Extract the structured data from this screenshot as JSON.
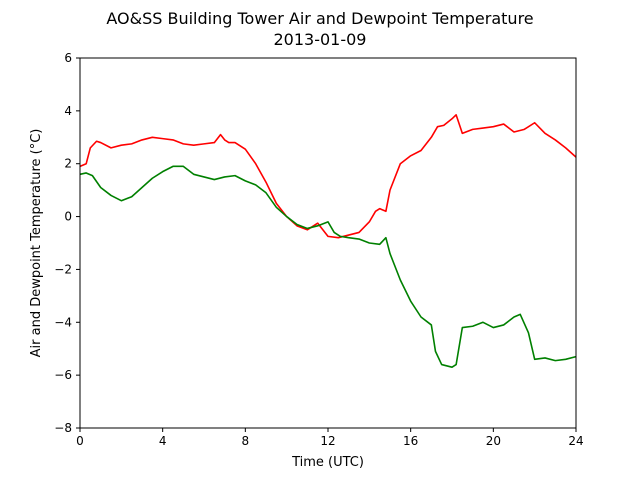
{
  "chart_data": {
    "type": "line",
    "title": "AO&SS Building Tower Air and Dewpoint Temperature",
    "subtitle": "2013-01-09",
    "xlabel": "Time (UTC)",
    "ylabel": "Air and Dewpoint Temperature (°C)",
    "xlim": [
      0,
      24
    ],
    "ylim": [
      -8,
      6
    ],
    "xticks": [
      0,
      4,
      8,
      12,
      16,
      20,
      24
    ],
    "yticks": [
      -8,
      -6,
      -4,
      -2,
      0,
      2,
      4,
      6
    ],
    "grid": false,
    "series": [
      {
        "color": "#ff0000",
        "x": [
          0,
          0.3,
          0.5,
          0.8,
          1.0,
          1.5,
          2.0,
          2.5,
          3.0,
          3.5,
          4.0,
          4.5,
          5.0,
          5.5,
          6.0,
          6.5,
          6.8,
          7.0,
          7.2,
          7.5,
          8.0,
          8.5,
          9.0,
          9.5,
          10.0,
          10.5,
          11.0,
          11.5,
          12.0,
          12.5,
          13.0,
          13.5,
          14.0,
          14.3,
          14.5,
          14.8,
          15.0,
          15.5,
          16.0,
          16.5,
          17.0,
          17.3,
          17.6,
          18.0,
          18.2,
          18.5,
          19.0,
          19.5,
          20.0,
          20.5,
          21.0,
          21.5,
          22.0,
          22.5,
          23.0,
          23.5,
          24.0
        ],
        "values": [
          1.9,
          2.0,
          2.6,
          2.85,
          2.8,
          2.6,
          2.7,
          2.75,
          2.9,
          3.0,
          2.95,
          2.9,
          2.75,
          2.7,
          2.75,
          2.8,
          3.1,
          2.9,
          2.8,
          2.8,
          2.55,
          2.0,
          1.3,
          0.5,
          0.0,
          -0.35,
          -0.5,
          -0.25,
          -0.75,
          -0.8,
          -0.7,
          -0.6,
          -0.2,
          0.2,
          0.3,
          0.2,
          1.0,
          2.0,
          2.3,
          2.5,
          3.0,
          3.4,
          3.45,
          3.7,
          3.85,
          3.15,
          3.3,
          3.35,
          3.4,
          3.5,
          3.2,
          3.3,
          3.55,
          3.15,
          2.9,
          2.6,
          2.25
        ]
      },
      {
        "color": "#008000",
        "x": [
          0,
          0.3,
          0.6,
          1.0,
          1.5,
          2.0,
          2.5,
          3.0,
          3.5,
          4.0,
          4.5,
          5.0,
          5.5,
          6.0,
          6.5,
          7.0,
          7.5,
          8.0,
          8.5,
          9.0,
          9.5,
          10.0,
          10.5,
          11.0,
          11.5,
          12.0,
          12.3,
          12.6,
          13.0,
          13.5,
          14.0,
          14.5,
          14.8,
          15.0,
          15.5,
          16.0,
          16.5,
          17.0,
          17.2,
          17.5,
          18.0,
          18.2,
          18.5,
          19.0,
          19.5,
          20.0,
          20.5,
          21.0,
          21.3,
          21.7,
          22.0,
          22.5,
          23.0,
          23.5,
          24.0
        ],
        "values": [
          1.6,
          1.65,
          1.55,
          1.1,
          0.8,
          0.6,
          0.75,
          1.1,
          1.45,
          1.7,
          1.9,
          1.9,
          1.6,
          1.5,
          1.4,
          1.5,
          1.55,
          1.35,
          1.2,
          0.9,
          0.35,
          0.0,
          -0.3,
          -0.45,
          -0.35,
          -0.2,
          -0.6,
          -0.75,
          -0.8,
          -0.85,
          -1.0,
          -1.05,
          -0.8,
          -1.4,
          -2.4,
          -3.2,
          -3.8,
          -4.1,
          -5.1,
          -5.6,
          -5.7,
          -5.6,
          -4.2,
          -4.15,
          -4.0,
          -4.2,
          -4.1,
          -3.8,
          -3.7,
          -4.4,
          -5.4,
          -5.35,
          -5.45,
          -5.4,
          -5.3
        ]
      }
    ]
  }
}
